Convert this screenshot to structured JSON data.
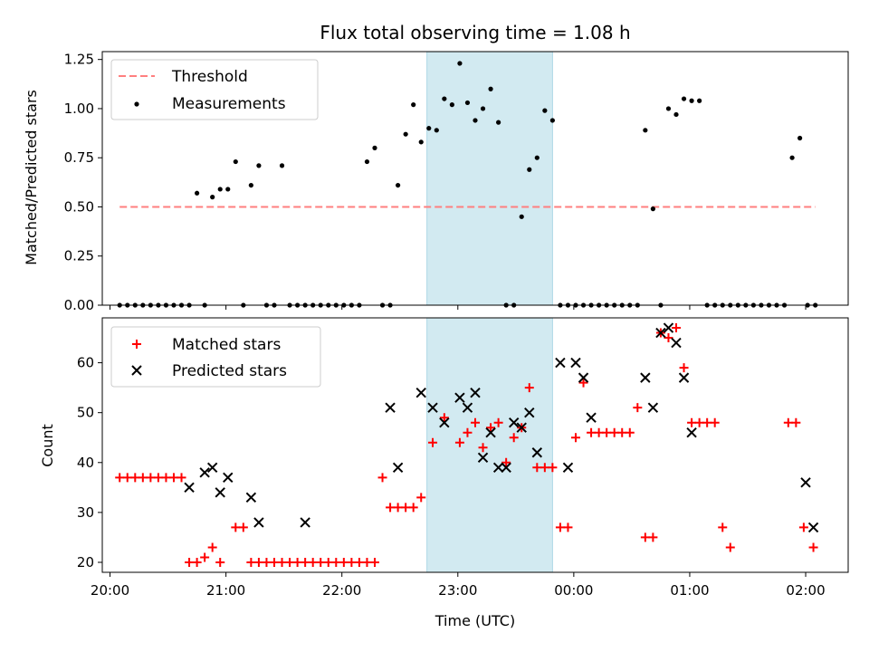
{
  "title": "Flux total observing time = 1.08 h",
  "colors": {
    "threshold": "#ff7f7f",
    "measurement": "#000000",
    "matched": "#ff0000",
    "predicted": "#000000",
    "window": "#add8e6"
  },
  "chart_data": [
    {
      "type": "scatter",
      "panel": "top",
      "ylabel": "Matched/Predicted stars",
      "ylim": [
        0,
        1.29
      ],
      "yticks": [
        "0.00",
        "0.25",
        "0.50",
        "0.75",
        "1.00",
        "1.25"
      ],
      "xlim": [
        "19:56",
        "02:22"
      ],
      "highlight_window": [
        "22:44",
        "23:49"
      ],
      "grid": false,
      "legend": {
        "placement": "top-left",
        "entries": [
          "Threshold",
          "Measurements"
        ]
      },
      "threshold": {
        "name": "Threshold",
        "y": 0.5,
        "x": [
          "20:05",
          "02:05"
        ]
      },
      "series": [
        {
          "name": "Measurements",
          "x": [
            "20:05",
            "20:09",
            "20:13",
            "20:17",
            "20:21",
            "20:25",
            "20:29",
            "20:33",
            "20:37",
            "20:41",
            "20:45",
            "20:49",
            "20:53",
            "20:57",
            "21:01",
            "21:05",
            "21:09",
            "21:13",
            "21:17",
            "21:21",
            "21:25",
            "21:29",
            "21:33",
            "21:37",
            "21:41",
            "21:45",
            "21:49",
            "21:53",
            "21:57",
            "22:01",
            "22:05",
            "22:09",
            "22:13",
            "22:17",
            "22:21",
            "22:25",
            "22:29",
            "22:33",
            "22:37",
            "22:41",
            "22:45",
            "22:49",
            "22:53",
            "22:57",
            "23:01",
            "23:05",
            "23:09",
            "23:13",
            "23:17",
            "23:21",
            "23:25",
            "23:29",
            "23:33",
            "23:37",
            "23:41",
            "23:45",
            "23:49",
            "23:53",
            "23:57",
            "00:01",
            "00:05",
            "00:09",
            "00:13",
            "00:17",
            "00:21",
            "00:25",
            "00:29",
            "00:33",
            "00:37",
            "00:41",
            "00:45",
            "00:49",
            "00:53",
            "00:57",
            "01:01",
            "01:05",
            "01:09",
            "01:13",
            "01:17",
            "01:21",
            "01:25",
            "01:29",
            "01:33",
            "01:37",
            "01:41",
            "01:45",
            "01:49",
            "01:53",
            "01:57",
            "02:01",
            "02:05"
          ],
          "y": [
            0,
            0,
            0,
            0,
            0,
            0,
            0,
            0,
            0,
            0,
            0.57,
            0,
            0.55,
            0.59,
            0.59,
            0.73,
            0,
            0.61,
            0.71,
            0,
            0,
            0.71,
            0,
            0,
            0,
            0,
            0,
            0,
            0,
            0,
            0,
            0,
            0.73,
            0.8,
            0,
            0,
            0.61,
            0.87,
            1.02,
            0.83,
            0.9,
            0.89,
            1.05,
            1.02,
            1.23,
            1.03,
            0.94,
            1.0,
            1.1,
            0.93,
            0,
            0,
            0.45,
            0.69,
            0.75,
            0.99,
            0.94,
            0,
            0,
            0,
            0,
            0,
            0,
            0,
            0,
            0,
            0,
            0,
            0.89,
            0.49,
            0,
            1.0,
            0.97,
            1.05,
            1.04,
            1.04,
            0,
            0,
            0,
            0,
            0,
            0,
            0,
            0,
            0,
            0,
            0,
            0.75,
            0.85,
            0,
            0
          ]
        }
      ]
    },
    {
      "type": "scatter",
      "panel": "bottom",
      "xlabel": "Time (UTC)",
      "ylabel": "Count",
      "ylim": [
        18,
        69
      ],
      "yticks": [
        "20",
        "30",
        "40",
        "50",
        "60"
      ],
      "xlim": [
        "19:56",
        "02:22"
      ],
      "xticks": [
        "20:00",
        "21:00",
        "22:00",
        "23:00",
        "00:00",
        "01:00",
        "02:00"
      ],
      "highlight_window": [
        "22:44",
        "23:49"
      ],
      "grid": false,
      "legend": {
        "placement": "top-left",
        "entries": [
          "Matched stars",
          "Predicted stars"
        ]
      },
      "series": [
        {
          "name": "Matched stars",
          "marker": "plus",
          "points": [
            [
              "20:05",
              37
            ],
            [
              "20:09",
              37
            ],
            [
              "20:13",
              37
            ],
            [
              "20:17",
              37
            ],
            [
              "20:21",
              37
            ],
            [
              "20:25",
              37
            ],
            [
              "20:29",
              37
            ],
            [
              "20:33",
              37
            ],
            [
              "20:37",
              37
            ],
            [
              "20:41",
              20
            ],
            [
              "20:45",
              20
            ],
            [
              "20:49",
              21
            ],
            [
              "20:53",
              23
            ],
            [
              "20:57",
              20
            ],
            [
              "21:05",
              27
            ],
            [
              "21:09",
              27
            ],
            [
              "21:13",
              20
            ],
            [
              "21:17",
              20
            ],
            [
              "21:21",
              20
            ],
            [
              "21:25",
              20
            ],
            [
              "21:29",
              20
            ],
            [
              "21:33",
              20
            ],
            [
              "21:37",
              20
            ],
            [
              "21:41",
              20
            ],
            [
              "21:45",
              20
            ],
            [
              "21:49",
              20
            ],
            [
              "21:53",
              20
            ],
            [
              "21:57",
              20
            ],
            [
              "22:01",
              20
            ],
            [
              "22:05",
              20
            ],
            [
              "22:09",
              20
            ],
            [
              "22:13",
              20
            ],
            [
              "22:17",
              20
            ],
            [
              "22:21",
              37
            ],
            [
              "22:25",
              31
            ],
            [
              "22:29",
              31
            ],
            [
              "22:33",
              31
            ],
            [
              "22:37",
              31
            ],
            [
              "22:41",
              33
            ],
            [
              "22:47",
              44
            ],
            [
              "22:53",
              49
            ],
            [
              "23:01",
              44
            ],
            [
              "23:05",
              46
            ],
            [
              "23:09",
              48
            ],
            [
              "23:13",
              43
            ],
            [
              "23:17",
              47
            ],
            [
              "23:21",
              48
            ],
            [
              "23:25",
              40
            ],
            [
              "23:29",
              45
            ],
            [
              "23:33",
              47
            ],
            [
              "23:37",
              55
            ],
            [
              "23:41",
              39
            ],
            [
              "23:45",
              39
            ],
            [
              "23:49",
              39
            ],
            [
              "23:53",
              27
            ],
            [
              "23:57",
              27
            ],
            [
              "00:01",
              45
            ],
            [
              "00:05",
              56
            ],
            [
              "00:09",
              46
            ],
            [
              "00:13",
              46
            ],
            [
              "00:17",
              46
            ],
            [
              "00:21",
              46
            ],
            [
              "00:25",
              46
            ],
            [
              "00:29",
              46
            ],
            [
              "00:33",
              51
            ],
            [
              "00:37",
              25
            ],
            [
              "00:41",
              25
            ],
            [
              "00:45",
              66
            ],
            [
              "00:49",
              65
            ],
            [
              "00:53",
              67
            ],
            [
              "00:57",
              59
            ],
            [
              "01:01",
              48
            ],
            [
              "01:05",
              48
            ],
            [
              "01:09",
              48
            ],
            [
              "01:13",
              48
            ],
            [
              "01:17",
              27
            ],
            [
              "01:21",
              23
            ],
            [
              "01:51",
              48
            ],
            [
              "01:55",
              48
            ],
            [
              "01:59",
              27
            ],
            [
              "02:04",
              23
            ]
          ]
        },
        {
          "name": "Predicted stars",
          "marker": "x",
          "points": [
            [
              "20:41",
              35
            ],
            [
              "20:49",
              38
            ],
            [
              "20:53",
              39
            ],
            [
              "20:57",
              34
            ],
            [
              "21:01",
              37
            ],
            [
              "21:13",
              33
            ],
            [
              "21:17",
              28
            ],
            [
              "21:41",
              28
            ],
            [
              "22:25",
              51
            ],
            [
              "22:29",
              39
            ],
            [
              "22:41",
              54
            ],
            [
              "22:47",
              51
            ],
            [
              "22:53",
              48
            ],
            [
              "23:01",
              53
            ],
            [
              "23:05",
              51
            ],
            [
              "23:09",
              54
            ],
            [
              "23:13",
              41
            ],
            [
              "23:17",
              46
            ],
            [
              "23:21",
              39
            ],
            [
              "23:25",
              39
            ],
            [
              "23:29",
              48
            ],
            [
              "23:33",
              47
            ],
            [
              "23:37",
              50
            ],
            [
              "23:41",
              42
            ],
            [
              "23:53",
              60
            ],
            [
              "23:57",
              39
            ],
            [
              "00:01",
              60
            ],
            [
              "00:05",
              57
            ],
            [
              "00:09",
              49
            ],
            [
              "00:37",
              57
            ],
            [
              "00:41",
              51
            ],
            [
              "00:45",
              66
            ],
            [
              "00:49",
              67
            ],
            [
              "00:53",
              64
            ],
            [
              "00:57",
              57
            ],
            [
              "01:01",
              46
            ],
            [
              "02:00",
              36
            ],
            [
              "02:04",
              27
            ]
          ]
        }
      ]
    }
  ]
}
